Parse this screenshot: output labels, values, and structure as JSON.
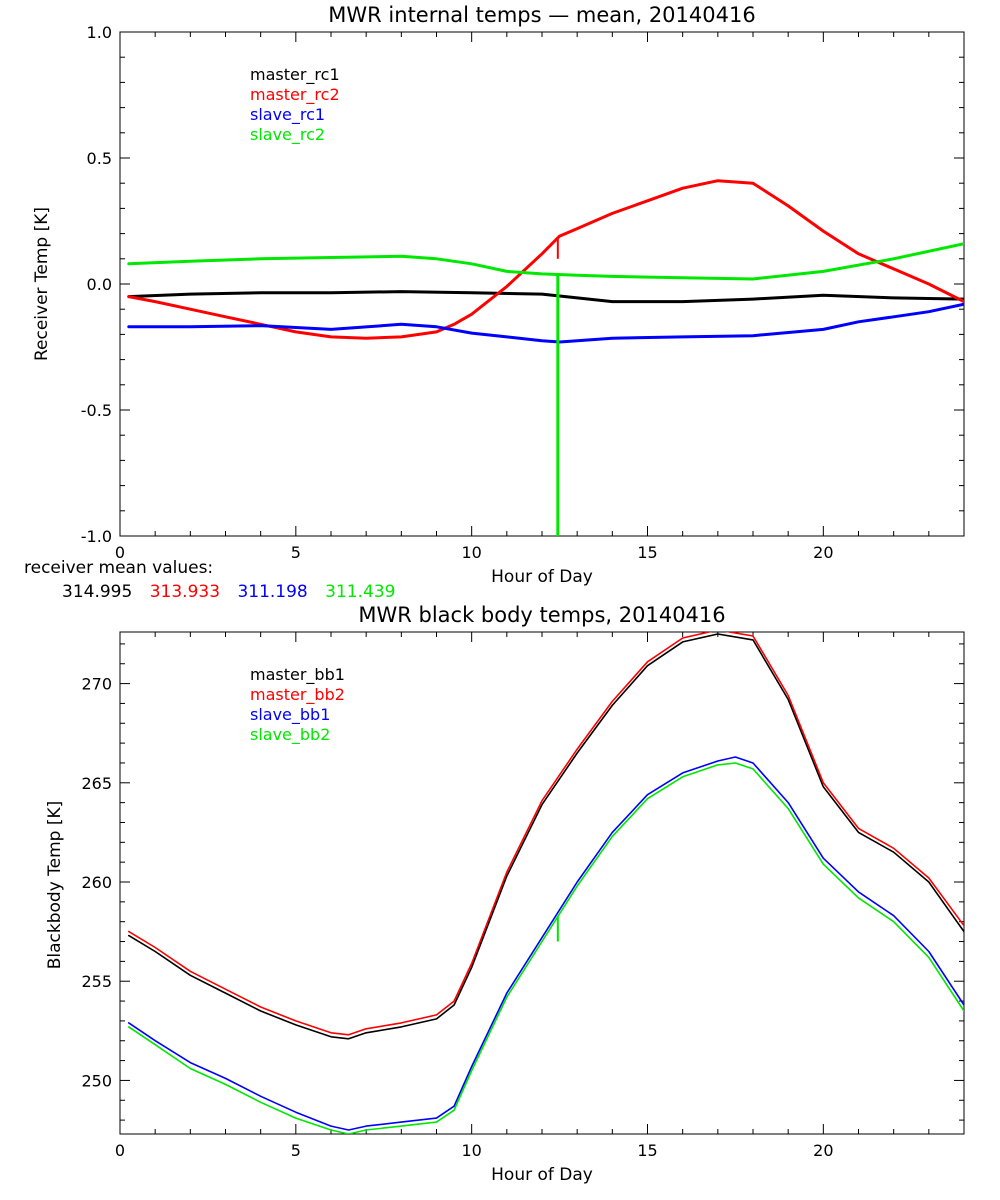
{
  "chart_data": [
    {
      "type": "line",
      "title": "MWR internal temps — mean, 20140416",
      "xlabel": "Hour of Day",
      "ylabel": "Receiver Temp [K]",
      "xlim": [
        0,
        24
      ],
      "ylim": [
        -1.0,
        1.0
      ],
      "xticks": [
        "0",
        "5",
        "10",
        "15",
        "20"
      ],
      "yticks": [
        "1.0",
        "0.5",
        "0.0",
        "-0.5",
        "-1.0"
      ],
      "ytick_values": [
        1.0,
        0.5,
        0.0,
        -0.5,
        -1.0
      ],
      "grid": false,
      "legend_position": "top-left",
      "series": [
        {
          "name": "master_rc1",
          "color": "#000000",
          "x": [
            0.25,
            2,
            4,
            6,
            8,
            10,
            12,
            13,
            14,
            16,
            18,
            20,
            22,
            24
          ],
          "y": [
            -0.05,
            -0.04,
            -0.035,
            -0.035,
            -0.03,
            -0.035,
            -0.04,
            -0.055,
            -0.07,
            -0.07,
            -0.06,
            -0.045,
            -0.055,
            -0.06
          ]
        },
        {
          "name": "master_rc2",
          "color": "#ff0000",
          "x": [
            0.25,
            1,
            2,
            3,
            4,
            5,
            6,
            7,
            8,
            9,
            9.5,
            10,
            11,
            12,
            12.5,
            13,
            14,
            15,
            16,
            17,
            18,
            19,
            20,
            21,
            22,
            23,
            24
          ],
          "y": [
            -0.05,
            -0.07,
            -0.1,
            -0.13,
            -0.16,
            -0.19,
            -0.21,
            -0.215,
            -0.21,
            -0.19,
            -0.16,
            -0.12,
            -0.01,
            0.12,
            0.19,
            0.22,
            0.28,
            0.33,
            0.38,
            0.41,
            0.4,
            0.31,
            0.21,
            0.12,
            0.06,
            0.0,
            -0.07
          ],
          "spike": {
            "x": 12.45,
            "y": 0.1
          }
        },
        {
          "name": "slave_rc1",
          "color": "#0000ff",
          "x": [
            0.25,
            2,
            4,
            6,
            8,
            9,
            10,
            11,
            12,
            12.5,
            14,
            16,
            18,
            20,
            21,
            22,
            23,
            24
          ],
          "y": [
            -0.17,
            -0.17,
            -0.165,
            -0.18,
            -0.16,
            -0.17,
            -0.195,
            -0.21,
            -0.225,
            -0.23,
            -0.215,
            -0.21,
            -0.205,
            -0.18,
            -0.15,
            -0.13,
            -0.11,
            -0.08
          ]
        },
        {
          "name": "slave_rc2",
          "color": "#00e800",
          "x": [
            0.25,
            2,
            4,
            6,
            8,
            9,
            10,
            11,
            12,
            13,
            14,
            16,
            18,
            20,
            22,
            24
          ],
          "y": [
            0.08,
            0.09,
            0.1,
            0.105,
            0.11,
            0.1,
            0.08,
            0.05,
            0.04,
            0.035,
            0.03,
            0.025,
            0.02,
            0.05,
            0.1,
            0.16
          ],
          "spike": {
            "x": 12.45,
            "y": -1.0
          }
        }
      ],
      "mean_values": {
        "label": "receiver mean values:",
        "values": [
          {
            "text": "314.995",
            "color": "#000000"
          },
          {
            "text": "313.933",
            "color": "#ff0000"
          },
          {
            "text": "311.198",
            "color": "#0000ff"
          },
          {
            "text": "311.439",
            "color": "#00e800"
          }
        ]
      }
    },
    {
      "type": "line",
      "title": "MWR black body temps, 20140416",
      "xlabel": "Hour of Day",
      "ylabel": "Blackbody Temp [K]",
      "xlim": [
        0,
        24
      ],
      "ylim": [
        247.3,
        272.6
      ],
      "xticks": [
        "0",
        "5",
        "10",
        "15",
        "20"
      ],
      "yticks": [
        "270",
        "265",
        "260",
        "255",
        "250"
      ],
      "ytick_values": [
        270,
        265,
        260,
        255,
        250
      ],
      "grid": false,
      "legend_position": "top-left",
      "series": [
        {
          "name": "master_bb1",
          "color": "#000000",
          "x": [
            0.25,
            1,
            2,
            3,
            4,
            5,
            6,
            6.5,
            7,
            8,
            9,
            9.5,
            10,
            11,
            12,
            13,
            14,
            15,
            16,
            17,
            18,
            19,
            20,
            21,
            22,
            23,
            24
          ],
          "y": [
            257.3,
            256.5,
            255.3,
            254.4,
            253.5,
            252.8,
            252.2,
            252.1,
            252.4,
            252.7,
            253.1,
            253.8,
            255.7,
            260.3,
            263.9,
            266.5,
            268.9,
            270.9,
            272.1,
            272.5,
            272.2,
            269.2,
            264.8,
            262.5,
            261.5,
            260.0,
            257.5
          ]
        },
        {
          "name": "master_bb2",
          "color": "#ff0000",
          "x": [
            0.25,
            1,
            2,
            3,
            4,
            5,
            6,
            6.5,
            7,
            8,
            9,
            9.5,
            10,
            11,
            12,
            13,
            14,
            15,
            16,
            17,
            18,
            19,
            20,
            21,
            22,
            23,
            24
          ],
          "y": [
            257.5,
            256.7,
            255.5,
            254.6,
            253.7,
            253.0,
            252.4,
            252.3,
            252.6,
            252.9,
            253.3,
            254.0,
            255.9,
            260.5,
            264.1,
            266.7,
            269.1,
            271.1,
            272.3,
            272.7,
            272.4,
            269.4,
            265.0,
            262.7,
            261.7,
            260.2,
            257.8
          ]
        },
        {
          "name": "slave_bb1",
          "color": "#0000ff",
          "x": [
            0.25,
            1,
            2,
            3,
            4,
            5,
            6,
            6.5,
            7,
            8,
            9,
            9.5,
            10,
            11,
            12,
            13,
            14,
            15,
            16,
            17,
            17.5,
            18,
            19,
            20,
            21,
            22,
            23,
            24
          ],
          "y": [
            252.9,
            252.0,
            250.9,
            250.1,
            249.2,
            248.4,
            247.7,
            247.5,
            247.7,
            247.9,
            248.1,
            248.7,
            250.7,
            254.4,
            257.2,
            260.0,
            262.5,
            264.4,
            265.5,
            266.1,
            266.3,
            266.0,
            264.0,
            261.2,
            259.5,
            258.3,
            256.5,
            253.8
          ]
        },
        {
          "name": "slave_bb2",
          "color": "#00e800",
          "x": [
            0.25,
            1,
            2,
            3,
            4,
            5,
            6,
            6.5,
            7,
            8,
            9,
            9.5,
            10,
            11,
            12,
            13,
            14,
            15,
            16,
            17,
            17.5,
            18,
            19,
            20,
            21,
            22,
            23,
            24
          ],
          "y": [
            252.7,
            251.8,
            250.6,
            249.8,
            248.9,
            248.1,
            247.5,
            247.3,
            247.5,
            247.7,
            247.9,
            248.5,
            250.5,
            254.2,
            257.0,
            259.8,
            262.3,
            264.2,
            265.3,
            265.9,
            266.0,
            265.7,
            263.7,
            260.9,
            259.2,
            258.0,
            256.2,
            253.5
          ],
          "spike": {
            "x": 12.45,
            "y": 257.0
          }
        }
      ]
    }
  ]
}
